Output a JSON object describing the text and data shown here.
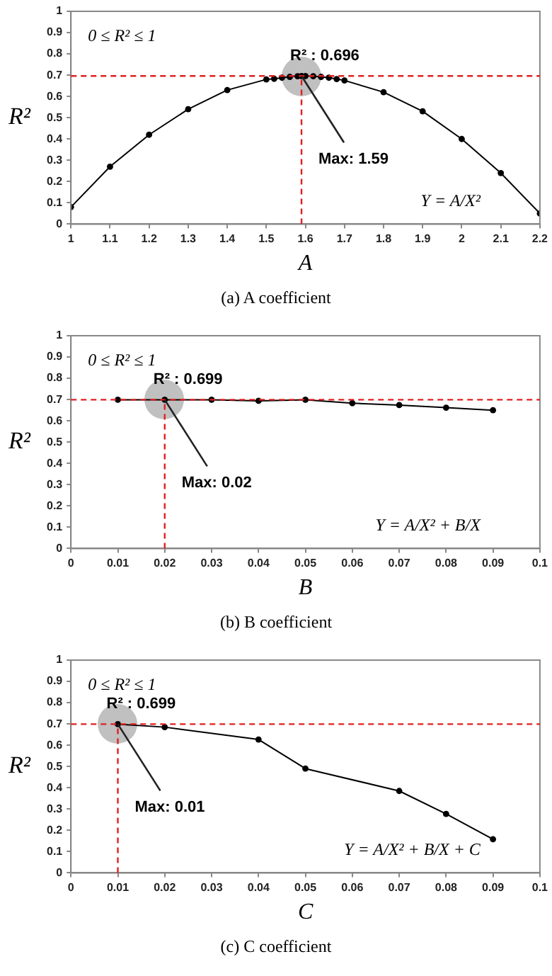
{
  "chart_data": [
    {
      "type": "line",
      "title": "(a)  A  coefficient",
      "xlabel": "A",
      "ylabel": "R²",
      "xlim": [
        1,
        2.2
      ],
      "xticks": [
        1,
        1.1,
        1.2,
        1.3,
        1.4,
        1.5,
        1.6,
        1.7,
        1.8,
        1.9,
        2,
        2.1,
        2.2
      ],
      "ylim": [
        0,
        1
      ],
      "yticks": [
        0,
        0.1,
        0.2,
        0.3,
        0.4,
        0.5,
        0.6,
        0.7,
        0.8,
        0.9,
        1
      ],
      "grid": false,
      "legend": false,
      "marker": "circle",
      "line_style": "solid",
      "series": [
        {
          "color": "#000000",
          "x": [
            1,
            1.1,
            1.2,
            1.3,
            1.4,
            1.5,
            1.52,
            1.54,
            1.56,
            1.58,
            1.59,
            1.6,
            1.62,
            1.64,
            1.66,
            1.68,
            1.7,
            1.8,
            1.9,
            2,
            2.1,
            2.2
          ],
          "values": [
            0.08,
            0.27,
            0.42,
            0.54,
            0.63,
            0.68,
            0.683,
            0.688,
            0.692,
            0.695,
            0.696,
            0.696,
            0.695,
            0.692,
            0.688,
            0.682,
            0.675,
            0.62,
            0.53,
            0.4,
            0.24,
            0.05
          ]
        }
      ],
      "ref_lines": [
        {
          "axis": "y",
          "value": 0.696,
          "color": "#e02020",
          "line_style": "dashed"
        },
        {
          "axis": "x",
          "value": 1.59,
          "color": "#e02020",
          "line_style": "dashed"
        }
      ],
      "annotations": [
        "0 ≤ R² ≤ 1",
        {
          "text": "R² : 0.696",
          "x": 1.59,
          "y": 0.696
        },
        {
          "text": "Max: 1.59",
          "x": 1.59,
          "y": 0.696
        },
        "Y = A/X²"
      ]
    },
    {
      "type": "line",
      "title": "(b)  B  coefficient",
      "xlabel": "B",
      "ylabel": "R²",
      "xlim": [
        0,
        0.1
      ],
      "xticks": [
        0,
        0.01,
        0.02,
        0.03,
        0.04,
        0.05,
        0.06,
        0.07,
        0.08,
        0.09,
        0.1
      ],
      "ylim": [
        0,
        1
      ],
      "yticks": [
        0,
        0.1,
        0.2,
        0.3,
        0.4,
        0.5,
        0.6,
        0.7,
        0.8,
        0.9,
        1
      ],
      "grid": false,
      "legend": false,
      "marker": "circle",
      "line_style": "solid",
      "series": [
        {
          "color": "#000000",
          "x": [
            0.01,
            0.02,
            0.03,
            0.04,
            0.05,
            0.06,
            0.07,
            0.08,
            0.09
          ],
          "values": [
            0.699,
            0.699,
            0.699,
            0.694,
            0.699,
            0.683,
            0.674,
            0.662,
            0.65
          ]
        }
      ],
      "ref_lines": [
        {
          "axis": "y",
          "value": 0.699,
          "color": "#e02020",
          "line_style": "dashed"
        },
        {
          "axis": "x",
          "value": 0.02,
          "color": "#e02020",
          "line_style": "dashed"
        }
      ],
      "annotations": [
        "0 ≤ R² ≤ 1",
        {
          "text": "R² : 0.699",
          "x": 0.02,
          "y": 0.699
        },
        {
          "text": "Max: 0.02",
          "x": 0.02,
          "y": 0.699
        },
        "Y = A/X² + B/X"
      ]
    },
    {
      "type": "line",
      "title": "(c)  C  coefficient",
      "xlabel": "C",
      "ylabel": "R²",
      "xlim": [
        0,
        0.1
      ],
      "xticks": [
        0,
        0.01,
        0.02,
        0.03,
        0.04,
        0.05,
        0.06,
        0.07,
        0.08,
        0.09,
        0.1
      ],
      "ylim": [
        0,
        1
      ],
      "yticks": [
        0,
        0.1,
        0.2,
        0.3,
        0.4,
        0.5,
        0.6,
        0.7,
        0.8,
        0.9,
        1
      ],
      "grid": false,
      "legend": false,
      "marker": "circle",
      "line_style": "solid",
      "series": [
        {
          "color": "#000000",
          "x": [
            0.01,
            0.02,
            0.04,
            0.05,
            0.07,
            0.08,
            0.09
          ],
          "values": [
            0.699,
            0.685,
            0.627,
            0.49,
            0.385,
            0.277,
            0.158
          ]
        }
      ],
      "ref_lines": [
        {
          "axis": "y",
          "value": 0.699,
          "color": "#e02020",
          "line_style": "dashed"
        },
        {
          "axis": "x",
          "value": 0.01,
          "color": "#e02020",
          "line_style": "dashed"
        }
      ],
      "annotations": [
        "0 ≤ R² ≤ 1",
        {
          "text": "R² : 0.699",
          "x": 0.01,
          "y": 0.699
        },
        {
          "text": "Max: 0.01",
          "x": 0.01,
          "y": 0.699
        },
        "Y = A/X² + B/X + C"
      ]
    }
  ]
}
